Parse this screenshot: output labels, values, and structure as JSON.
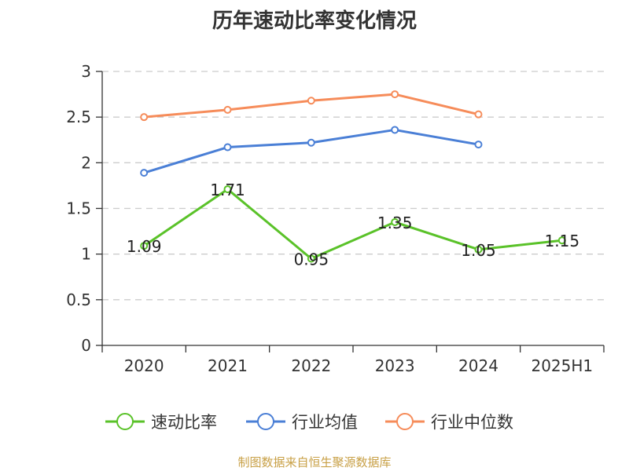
{
  "chart_data": {
    "type": "line",
    "title": "历年速动比率变化情况",
    "categories": [
      "2020",
      "2021",
      "2022",
      "2023",
      "2024",
      "2025H1"
    ],
    "ylim": [
      0,
      3
    ],
    "yticks": [
      "0",
      "0.5",
      "1",
      "1.5",
      "2",
      "2.5",
      "3"
    ],
    "grid": true,
    "legend_position": "bottom",
    "series": [
      {
        "name": "速动比率",
        "color": "#5ac229",
        "values": [
          1.09,
          1.71,
          0.95,
          1.35,
          1.05,
          1.15
        ],
        "labels": [
          "1.09",
          "1.71",
          "0.95",
          "1.35",
          "1.05",
          "1.15"
        ]
      },
      {
        "name": "行业均值",
        "color": "#4a7fd6",
        "values": [
          1.89,
          2.17,
          2.22,
          2.36,
          2.2,
          null
        ]
      },
      {
        "name": "行业中位数",
        "color": "#f68c5a",
        "values": [
          2.5,
          2.58,
          2.68,
          2.75,
          2.53,
          null
        ]
      }
    ]
  },
  "source_text": "制图数据来自恒生聚源数据库"
}
